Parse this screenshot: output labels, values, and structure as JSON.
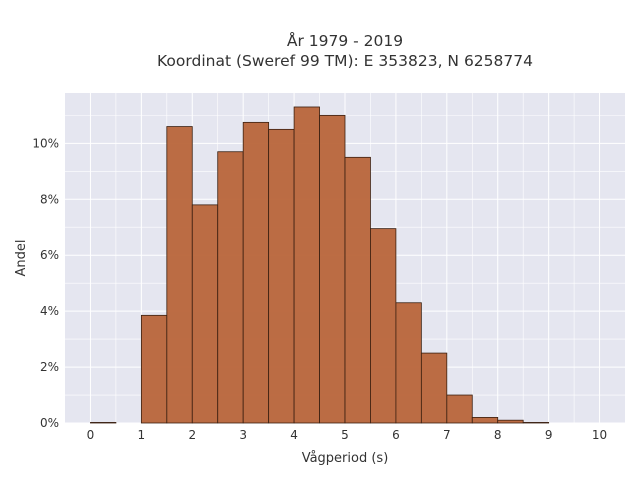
{
  "chart_data": {
    "type": "bar",
    "title_line1": "År 1979 - 2019",
    "title_line2": "Koordinat (Sweref 99 TM): E 353823, N 6258774",
    "xlabel": "Vågperiod (s)",
    "ylabel": "Andel",
    "xlim": [
      -0.5,
      10.5
    ],
    "ylim": [
      0,
      11.8
    ],
    "x_ticks": [
      0,
      1,
      2,
      3,
      4,
      5,
      6,
      7,
      8,
      9,
      10
    ],
    "x_tick_labels": [
      "0",
      "1",
      "2",
      "3",
      "4",
      "5",
      "6",
      "7",
      "8",
      "9",
      "10"
    ],
    "y_ticks": [
      0,
      2,
      4,
      6,
      8,
      10
    ],
    "y_tick_labels": [
      "0%",
      "2%",
      "4%",
      "6%",
      "8%",
      "10%"
    ],
    "bin_width": 0.5,
    "bin_starts": [
      0,
      0.5,
      1,
      1.5,
      2,
      2.5,
      3,
      3.5,
      4,
      4.5,
      5,
      5.5,
      6,
      6.5,
      7,
      7.5,
      8,
      8.5,
      9,
      9.5
    ],
    "values": [
      0.02,
      0,
      3.85,
      10.6,
      7.8,
      9.7,
      10.75,
      10.5,
      11.3,
      11.0,
      9.5,
      6.95,
      4.3,
      2.5,
      1.0,
      0.2,
      0.1,
      0.02,
      0,
      0
    ],
    "colors": {
      "bar_fill": "#b8653a",
      "bar_edge": "#3a1f10",
      "plot_bg": "#e5e6f0",
      "grid": "#ffffff"
    },
    "grid": true
  }
}
